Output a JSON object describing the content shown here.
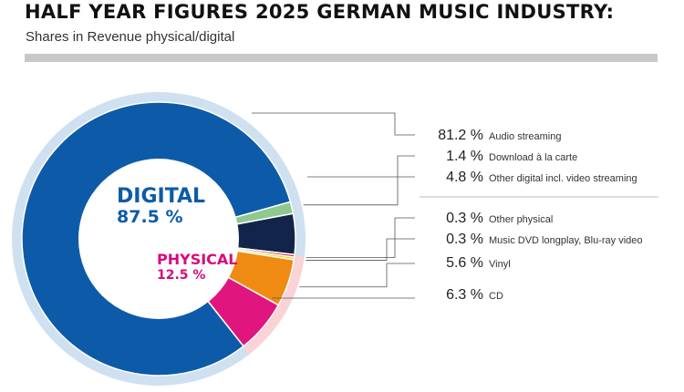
{
  "header": {
    "title": "HALF YEAR FIGURES 2025 GERMAN MUSIC INDUSTRY:",
    "subtitle": "Shares in Revenue physical/digital"
  },
  "colors": {
    "digital_text": "#0d5ba8",
    "physical_text": "#d80a7d",
    "digital_ring": "#cfe0f0",
    "physical_ring": "#f9d3d6"
  },
  "chart_data": {
    "type": "pie",
    "title": "HALF YEAR FIGURES 2025 GERMAN MUSIC INDUSTRY:",
    "subtitle": "Shares in Revenue physical/digital",
    "groups": [
      {
        "name": "DIGITAL",
        "value_label": "87.5 %",
        "value": 87.5
      },
      {
        "name": "PHYSICAL",
        "value_label": "12.5 %",
        "value": 12.5
      }
    ],
    "slices": [
      {
        "label": "Audio streaming",
        "value_label": "81.2 %",
        "value": 81.2,
        "group": "DIGITAL",
        "color": "#0d5ba8"
      },
      {
        "label": "Download à la carte",
        "value_label": "1.4 %",
        "value": 1.4,
        "group": "DIGITAL",
        "color": "#8ec98e"
      },
      {
        "label": "Other digital incl. video streaming",
        "value_label": "4.8 %",
        "value": 4.8,
        "group": "DIGITAL",
        "color": "#13244a"
      },
      {
        "label": "Other physical",
        "value_label": "0.3 %",
        "value": 0.3,
        "group": "PHYSICAL",
        "color": "#e02840"
      },
      {
        "label": "Music DVD longplay, Blu-ray video",
        "value_label": "0.3 %",
        "value": 0.3,
        "group": "PHYSICAL",
        "color": "#f5d000"
      },
      {
        "label": "Vinyl",
        "value_label": "5.6 %",
        "value": 5.6,
        "group": "PHYSICAL",
        "color": "#ef8a12"
      },
      {
        "label": "CD",
        "value_label": "6.3 %",
        "value": 6.3,
        "group": "PHYSICAL",
        "color": "#e0157d"
      }
    ]
  }
}
